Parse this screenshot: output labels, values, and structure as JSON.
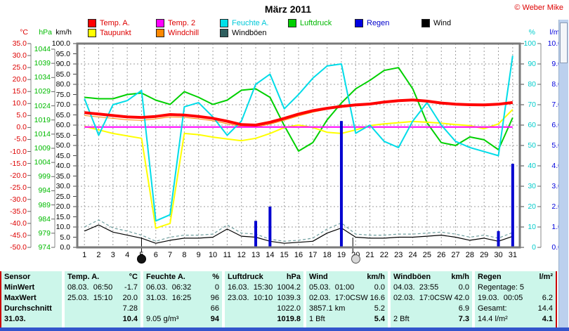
{
  "title": "März 2011",
  "credit": "© Weber Mike",
  "legend": {
    "items": [
      {
        "label": "Temp. A.",
        "box": "#ff0000",
        "text": "#dd0000"
      },
      {
        "label": "Temp. 2",
        "box": "#ff00ff",
        "text": "#dd0000"
      },
      {
        "label": "Feuchte A.",
        "box": "#00e0e8",
        "text": "#00c8d8"
      },
      {
        "label": "Luftdruck",
        "box": "#00d000",
        "text": "#00b800"
      },
      {
        "label": "Regen",
        "box": "#0000e0",
        "text": "#0000cc"
      },
      {
        "label": "Wind",
        "box": "#000000",
        "text": "#000000"
      },
      {
        "label": "Taupunkt",
        "box": "#ffff00",
        "text": "#dd0000"
      },
      {
        "label": "Windchill",
        "box": "#ff8800",
        "text": "#dd0000"
      },
      {
        "label": "Windböen",
        "box": "#2f5f5f",
        "text": "#000000"
      }
    ]
  },
  "axis_labels": {
    "temp_c": {
      "header": "°C",
      "color": "#dd0000",
      "ticks": [
        "35.0",
        "30.0",
        "25.0",
        "20.0",
        "15.0",
        "10.0",
        "5.0",
        "0.0",
        "-5.0",
        "-10.0",
        "-15.0",
        "-20.0",
        "-25.0",
        "-30.0",
        "-35.0",
        "-40.0",
        "-45.0",
        "-50.0"
      ]
    },
    "hpa": {
      "header": "hPa",
      "color": "#00bb00",
      "ticks": [
        "1044",
        "1039",
        "1034",
        "1029",
        "1024",
        "1019",
        "1014",
        "1009",
        "1004",
        "999",
        "994",
        "989",
        "984",
        "979",
        "974"
      ]
    },
    "kmh": {
      "header": "km/h",
      "color": "#000000",
      "ticks": [
        "100.0",
        "95.0",
        "90.0",
        "85.0",
        "80.0",
        "75.0",
        "70.0",
        "65.0",
        "60.0",
        "55.0",
        "50.0",
        "45.0",
        "40.0",
        "35.0",
        "30.0",
        "25.0",
        "20.0",
        "15.0",
        "10.0",
        "5.0",
        "0.0"
      ]
    },
    "percent": {
      "header": "%",
      "color": "#00cccc",
      "ticks": [
        "100",
        "90",
        "80",
        "70",
        "60",
        "50",
        "40",
        "30",
        "20",
        "10",
        "0"
      ]
    },
    "lm2": {
      "header": "l/m²",
      "color": "#0000dd",
      "ticks": [
        "10.0",
        "9.0",
        "8.0",
        "7.0",
        "6.0",
        "5.0",
        "4.0",
        "3.0",
        "2.0",
        "1.0",
        "0.0"
      ]
    },
    "days": [
      "1",
      "2",
      "3",
      "4",
      "5",
      "6",
      "7",
      "8",
      "9",
      "10",
      "11",
      "12",
      "13",
      "14",
      "15",
      "16",
      "17",
      "18",
      "19",
      "20",
      "21",
      "22",
      "23",
      "24",
      "25",
      "26",
      "27",
      "28",
      "29",
      "30",
      "31"
    ]
  },
  "chart_data": {
    "type": "line",
    "title": "März 2011",
    "x_days": [
      1,
      2,
      3,
      4,
      5,
      6,
      7,
      8,
      9,
      10,
      11,
      12,
      13,
      14,
      15,
      16,
      17,
      18,
      19,
      20,
      21,
      22,
      23,
      24,
      25,
      26,
      27,
      28,
      29,
      30,
      31
    ],
    "axis_ranges": {
      "temp_c": [
        -50,
        35
      ],
      "hpa": [
        974,
        1044
      ],
      "kmh_percent": [
        0,
        100
      ],
      "lm2": [
        0,
        10
      ]
    },
    "grid": true,
    "series": [
      {
        "name": "Luftdruck",
        "unit": "hPa",
        "color": "#00d000",
        "width": 2,
        "values": [
          1027,
          1026.5,
          1026.5,
          1028,
          1028.5,
          1026,
          1024.5,
          1029,
          1027,
          1024.5,
          1026,
          1029.5,
          1030,
          1027,
          1017,
          1008,
          1011,
          1019,
          1025,
          1030,
          1033,
          1036.5,
          1037.5,
          1030,
          1018,
          1011,
          1010,
          1013,
          1012,
          1008.5,
          1019.8
        ]
      },
      {
        "name": "Taupunkt",
        "unit": "°C",
        "color": "#ffff00",
        "width": 2,
        "values": [
          0.5,
          -1.0,
          -2.5,
          -3.5,
          -4.5,
          -42.0,
          -40.0,
          -2.5,
          -3.0,
          -4.0,
          -4.8,
          -5.5,
          -4.5,
          -2.5,
          0.0,
          1.0,
          0.0,
          -2.0,
          -2.5,
          -1.0,
          0.8,
          1.5,
          2.0,
          2.5,
          2.2,
          1.8,
          1.2,
          0.8,
          -0.5,
          1.5,
          7.5
        ]
      },
      {
        "name": "Windchill",
        "unit": "°C",
        "color": "#ff8800",
        "width": 1,
        "values": [
          5.0,
          4.4,
          3.8,
          3.2,
          3.0,
          3.6,
          4.4,
          4.2,
          3.6,
          2.8,
          1.6,
          0.4,
          0.2,
          1.4,
          3.0,
          4.8,
          6.4,
          7.6,
          8.5,
          9.2,
          9.6,
          10.4,
          11.2,
          11.7,
          11.2,
          10.4,
          9.9,
          9.6,
          9.2,
          9.5,
          10.1
        ]
      },
      {
        "name": "Temp. 2",
        "unit": "°C",
        "color": "#ff00ff",
        "width": 2,
        "constant": 0.2
      },
      {
        "name": "Feuchte A.",
        "unit": "%",
        "color": "#00dce8",
        "width": 2,
        "values": [
          73,
          55,
          70,
          72,
          77,
          13,
          16,
          69,
          71,
          64,
          55,
          62,
          80,
          85,
          68,
          75,
          83,
          89,
          90,
          56,
          60,
          52,
          49,
          62,
          71,
          60,
          52,
          49,
          47,
          45,
          94
        ]
      },
      {
        "name": "Temp. A.",
        "unit": "°C",
        "color": "#ff0000",
        "width": 4,
        "values": [
          6.2,
          5.6,
          5.0,
          4.4,
          4.2,
          4.6,
          5.4,
          5.2,
          4.6,
          3.8,
          2.6,
          1.2,
          1.0,
          2.2,
          3.8,
          5.6,
          7.0,
          8.0,
          8.8,
          9.4,
          9.8,
          10.6,
          11.2,
          11.5,
          11.0,
          10.2,
          9.7,
          9.5,
          9.4,
          9.7,
          10.4
        ]
      },
      {
        "name": "Wind",
        "unit": "km/h",
        "color": "#000000",
        "width": 1.2,
        "values": [
          8,
          11,
          7.5,
          6,
          4.5,
          2,
          3.5,
          4.5,
          4.5,
          5,
          9,
          5.5,
          5,
          3,
          2,
          2.5,
          3,
          7,
          9.5,
          5,
          4.5,
          4.5,
          5,
          5,
          5.5,
          6,
          5,
          3.5,
          4.5,
          3,
          5.4
        ]
      },
      {
        "name": "Windböen",
        "unit": "km/h",
        "color": "#6f9f9f",
        "width": 1.2,
        "dashed": true,
        "values": [
          10,
          13.5,
          9.5,
          8,
          6,
          3,
          5,
          6,
          6,
          6.5,
          11,
          7,
          6.5,
          4,
          3,
          3.5,
          4.5,
          9,
          12,
          6.5,
          6,
          6,
          6.5,
          6.5,
          7,
          7.5,
          6.5,
          5,
          6,
          4.5,
          7.3
        ]
      }
    ],
    "rain_bars": {
      "name": "Regen",
      "unit": "l/m²",
      "color": "#0000d0",
      "days": [
        13,
        14,
        19,
        30,
        31
      ],
      "values": [
        1.3,
        2.0,
        6.2,
        0.8,
        4.1
      ]
    },
    "moon_phases": [
      {
        "icon": "new-moon-icon",
        "day": 5
      },
      {
        "icon": "full-moon-icon",
        "day": 20
      }
    ]
  },
  "table": {
    "row_labels": [
      "Sensor",
      "MinWert",
      "MaxWert",
      "Durchschnitt",
      "31.03."
    ],
    "columns": [
      {
        "header": "Temp. A.",
        "unit": "°C",
        "rows": [
          [
            "08.03.  06:50",
            "-1.7"
          ],
          [
            "25.03.  15:10",
            "20.0"
          ],
          [
            "",
            "7.28"
          ],
          [
            "",
            "10.4"
          ]
        ]
      },
      {
        "header": "Feuchte A.",
        "unit": "%",
        "rows": [
          [
            "06.03.  06:32",
            "0"
          ],
          [
            "31.03.  16:25",
            "96"
          ],
          [
            "",
            "66"
          ],
          [
            "9.05 g/m³",
            "94"
          ]
        ]
      },
      {
        "header": "Luftdruck",
        "unit": "hPa",
        "rows": [
          [
            "16.03.  15:30",
            "1004.2"
          ],
          [
            "23.03.  10:10",
            "1039.3"
          ],
          [
            "",
            "1022.0"
          ],
          [
            "",
            "1019.8"
          ]
        ]
      },
      {
        "header": "Wind",
        "unit": "km/h",
        "rows": [
          [
            "05.03.  01:00",
            "0.0"
          ],
          [
            "02.03.  17:0CSW",
            "16.6"
          ],
          [
            "3857.1 km",
            "5.2"
          ],
          [
            "1 Bft",
            "5.4"
          ]
        ]
      },
      {
        "header": "Windböen",
        "unit": "km/h",
        "rows": [
          [
            "04.03.  23:55",
            "0.0"
          ],
          [
            "02.03.  17:0CSW",
            "42.0"
          ],
          [
            "",
            "6.9"
          ],
          [
            "2 Bft",
            "7.3"
          ]
        ]
      },
      {
        "header": "Regen",
        "unit": "l/m²",
        "rows": [
          [
            "Regentage: 5",
            ""
          ],
          [
            "19.03.  00:05",
            "6.2"
          ],
          [
            "Gesamt:",
            "14.4"
          ],
          [
            "14.4 l/m²",
            "4.1"
          ]
        ]
      }
    ]
  }
}
